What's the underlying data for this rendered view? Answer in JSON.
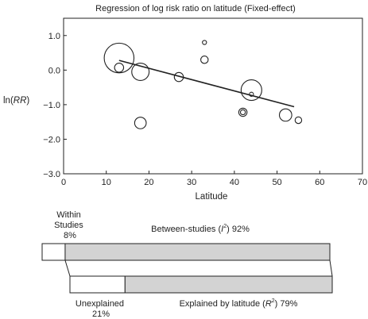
{
  "chart_data": [
    {
      "type": "scatter",
      "title": "Regression of log risk ratio on latitude (Fixed-effect)",
      "xlabel": "Latitude",
      "ylabel": {
        "prefix": "ln(",
        "italic": "RR",
        "suffix": ")"
      },
      "xlim": [
        0,
        70
      ],
      "ylim": [
        -3.0,
        1.5
      ],
      "xticks": [
        0,
        10,
        20,
        30,
        40,
        50,
        60,
        70
      ],
      "yticks": [
        {
          "value": 1.0,
          "label": "1.0"
        },
        {
          "value": 0.0,
          "label": "0.0"
        },
        {
          "value": -1.0,
          "label": "−1.0"
        },
        {
          "value": -2.0,
          "label": "−2.0"
        },
        {
          "value": -3.0,
          "label": "−3.0"
        }
      ],
      "grid": false,
      "points": [
        {
          "x": 13,
          "y": 0.35,
          "weight": 3.6
        },
        {
          "x": 13,
          "y": 0.07,
          "weight": 1.1
        },
        {
          "x": 18,
          "y": -0.05,
          "weight": 2.1
        },
        {
          "x": 18,
          "y": -1.53,
          "weight": 1.4
        },
        {
          "x": 27,
          "y": -0.2,
          "weight": 1.1
        },
        {
          "x": 33,
          "y": 0.8,
          "weight": 0.5
        },
        {
          "x": 33,
          "y": 0.3,
          "weight": 0.9
        },
        {
          "x": 42,
          "y": -1.22,
          "weight": 1.0
        },
        {
          "x": 42,
          "y": -1.22,
          "weight": 0.6
        },
        {
          "x": 44,
          "y": -0.58,
          "weight": 2.5
        },
        {
          "x": 44,
          "y": -0.7,
          "weight": 0.5
        },
        {
          "x": 52,
          "y": -1.3,
          "weight": 1.5
        },
        {
          "x": 55,
          "y": -1.45,
          "weight": 0.8
        }
      ],
      "regression_line": {
        "x": [
          13,
          54
        ],
        "y": [
          0.28,
          -1.06
        ]
      }
    },
    {
      "type": "bar",
      "orientation": "horizontal-stacked",
      "bars": [
        {
          "segments": [
            {
              "name_lines": [
                "Within",
                "Studies"
              ],
              "value_label": "8%",
              "value": 8,
              "color": "#ffffff"
            },
            {
              "name_parts": [
                "Between-studies (",
                "I",
                "2",
                ") 92%"
              ],
              "value": 92,
              "color": "#d3d3d3"
            }
          ]
        },
        {
          "segments": [
            {
              "name": "Unexplained",
              "value_label": "21%",
              "value": 21,
              "color": "#ffffff"
            },
            {
              "name_parts": [
                "Explained by latitude (",
                "R",
                "2",
                ") 79%"
              ],
              "value": 79,
              "color": "#d3d3d3"
            }
          ]
        }
      ]
    }
  ]
}
